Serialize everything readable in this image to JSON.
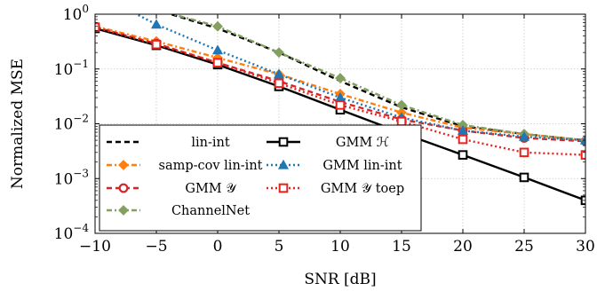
{
  "chart_data": {
    "type": "line",
    "xlabel": "SNR [dB]",
    "ylabel": "Normalized MSE",
    "xlim": [
      -10,
      30
    ],
    "ylim": [
      0.0001,
      1
    ],
    "yscale": "log",
    "grid": true,
    "legend_position": "bottom-left",
    "x_ticks": [
      -10,
      -5,
      0,
      5,
      10,
      15,
      20,
      25,
      30
    ],
    "x_tick_labels": [
      "−10",
      "−5",
      "0",
      "5",
      "10",
      "15",
      "20",
      "25",
      "30"
    ],
    "y_ticks": [
      0.0001,
      0.001,
      0.01,
      0.1,
      1
    ],
    "y_tick_labels": [
      {
        "base": "10",
        "exp": "−4"
      },
      {
        "base": "10",
        "exp": "−3"
      },
      {
        "base": "10",
        "exp": "−2"
      },
      {
        "base": "10",
        "exp": "−1"
      },
      {
        "base": "10",
        "exp": "0"
      }
    ],
    "x": [
      -10,
      -5,
      0,
      5,
      10,
      15,
      20,
      25,
      30
    ],
    "series": [
      {
        "name": "lin-int",
        "color": "#000000",
        "dash": "dashed",
        "marker": "none",
        "values": [
          2.5,
          1.2,
          0.55,
          0.2,
          0.06,
          0.02,
          0.009,
          0.0065,
          0.005
        ]
      },
      {
        "name": "samp-cov lin-int",
        "color": "#ff7f0e",
        "dash": "dashdot",
        "marker": "diamond",
        "values": [
          0.6,
          0.32,
          0.16,
          0.08,
          0.035,
          0.016,
          0.0085,
          0.0065,
          0.005
        ]
      },
      {
        "name": "GMM 𝒴",
        "color": "#d62728",
        "dash": "dashed",
        "marker": "circle-open",
        "values": [
          0.58,
          0.29,
          0.13,
          0.06,
          0.025,
          0.012,
          0.0075,
          0.0055,
          0.0048
        ]
      },
      {
        "name": "ChannelNet",
        "color": "#84a060",
        "dash": "dashdot",
        "marker": "diamond",
        "values": [
          2.5,
          1.2,
          0.6,
          0.2,
          0.068,
          0.022,
          0.0095,
          0.0065,
          0.005
        ]
      },
      {
        "name": "GMM ℋ",
        "color": "#000000",
        "dash": "solid",
        "marker": "square-open",
        "values": [
          0.55,
          0.27,
          0.12,
          0.048,
          0.018,
          0.0068,
          0.0027,
          0.00105,
          0.0004
        ]
      },
      {
        "name": "GMM lin-int",
        "color": "#1f77b4",
        "dash": "dotted",
        "marker": "triangle",
        "values": [
          2.5,
          0.65,
          0.22,
          0.08,
          0.03,
          0.013,
          0.0075,
          0.0058,
          0.005
        ]
      },
      {
        "name": "GMM 𝒴 toep",
        "color": "#e8231d",
        "dash": "dotted",
        "marker": "square-open",
        "values": [
          0.58,
          0.28,
          0.13,
          0.055,
          0.022,
          0.011,
          0.0052,
          0.003,
          0.0027
        ]
      }
    ]
  }
}
